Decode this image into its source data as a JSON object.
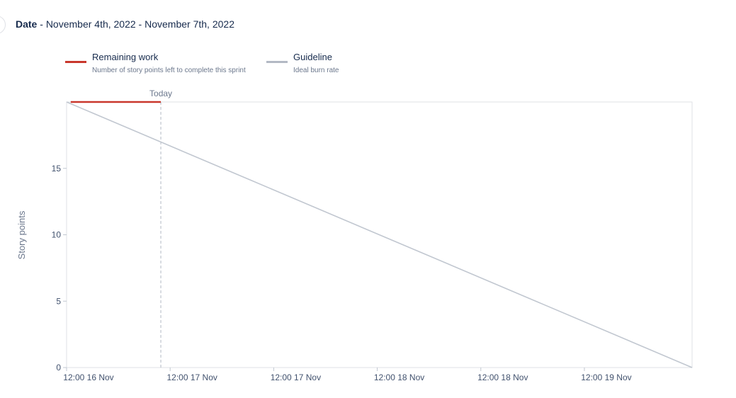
{
  "header": {
    "date_label": "Date",
    "separator": " - ",
    "start_date": "November 4th, 2022",
    "end_date": "November 7th, 2022"
  },
  "legend": [
    {
      "title": "Remaining work",
      "description": "Number of story points left to complete this sprint",
      "color": "#c9372c"
    },
    {
      "title": "Guideline",
      "description": "Ideal burn rate",
      "color": "#b3b9c4"
    }
  ],
  "chart_data": {
    "type": "line",
    "ylabel": "Story points",
    "xlabel": "",
    "ylim": [
      0,
      20
    ],
    "yticks": [
      0,
      5,
      10,
      15
    ],
    "x_tick_labels": [
      "12:00 16 Nov",
      "12:00 17 Nov",
      "12:00 17 Nov",
      "12:00 18 Nov",
      "12:00 18 Nov",
      "12:00 19 Nov"
    ],
    "x_tick_positions": [
      0,
      0.5,
      1.0,
      1.5,
      2.0,
      2.5
    ],
    "x_range": [
      0,
      3.02
    ],
    "today": {
      "label": "Today",
      "x": 0.455
    },
    "grid": false,
    "series": [
      {
        "name": "Remaining work",
        "color": "#c9372c",
        "points": [
          [
            0.02,
            20
          ],
          [
            0.455,
            20
          ]
        ]
      },
      {
        "name": "Guideline",
        "color": "#c1c7d0",
        "points": [
          [
            0,
            20
          ],
          [
            3.02,
            0
          ]
        ]
      }
    ]
  }
}
